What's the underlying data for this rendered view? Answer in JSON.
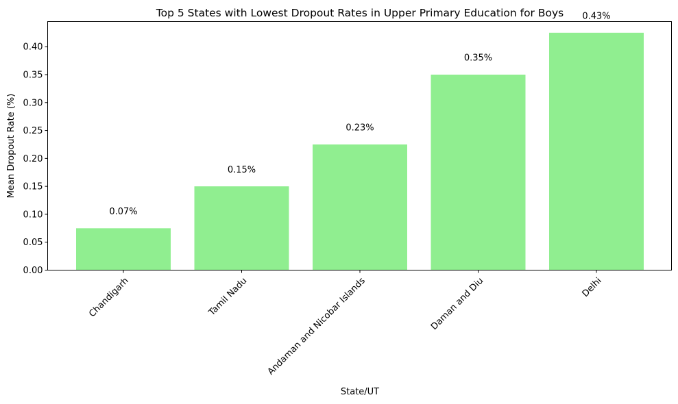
{
  "chart_data": {
    "type": "bar",
    "title": "Top 5 States with Lowest Dropout Rates in Upper Primary Education for Boys",
    "xlabel": "State/UT",
    "ylabel": "Mean Dropout Rate (%)",
    "categories": [
      "Chandigarh",
      "Tamil Nadu",
      "Andaman and Nicobar Islands",
      "Daman and Diu",
      "Delhi"
    ],
    "values": [
      0.075,
      0.15,
      0.225,
      0.35,
      0.425
    ],
    "data_labels": [
      "0.07%",
      "0.15%",
      "0.23%",
      "0.35%",
      "0.43%"
    ],
    "yticks": [
      "0.00",
      "0.05",
      "0.10",
      "0.15",
      "0.20",
      "0.25",
      "0.30",
      "0.35",
      "0.40"
    ],
    "ylim": [
      0,
      0.445
    ],
    "bar_color": "#90ee90",
    "grid": false,
    "legend": "none",
    "xtick_rotation": 45
  }
}
